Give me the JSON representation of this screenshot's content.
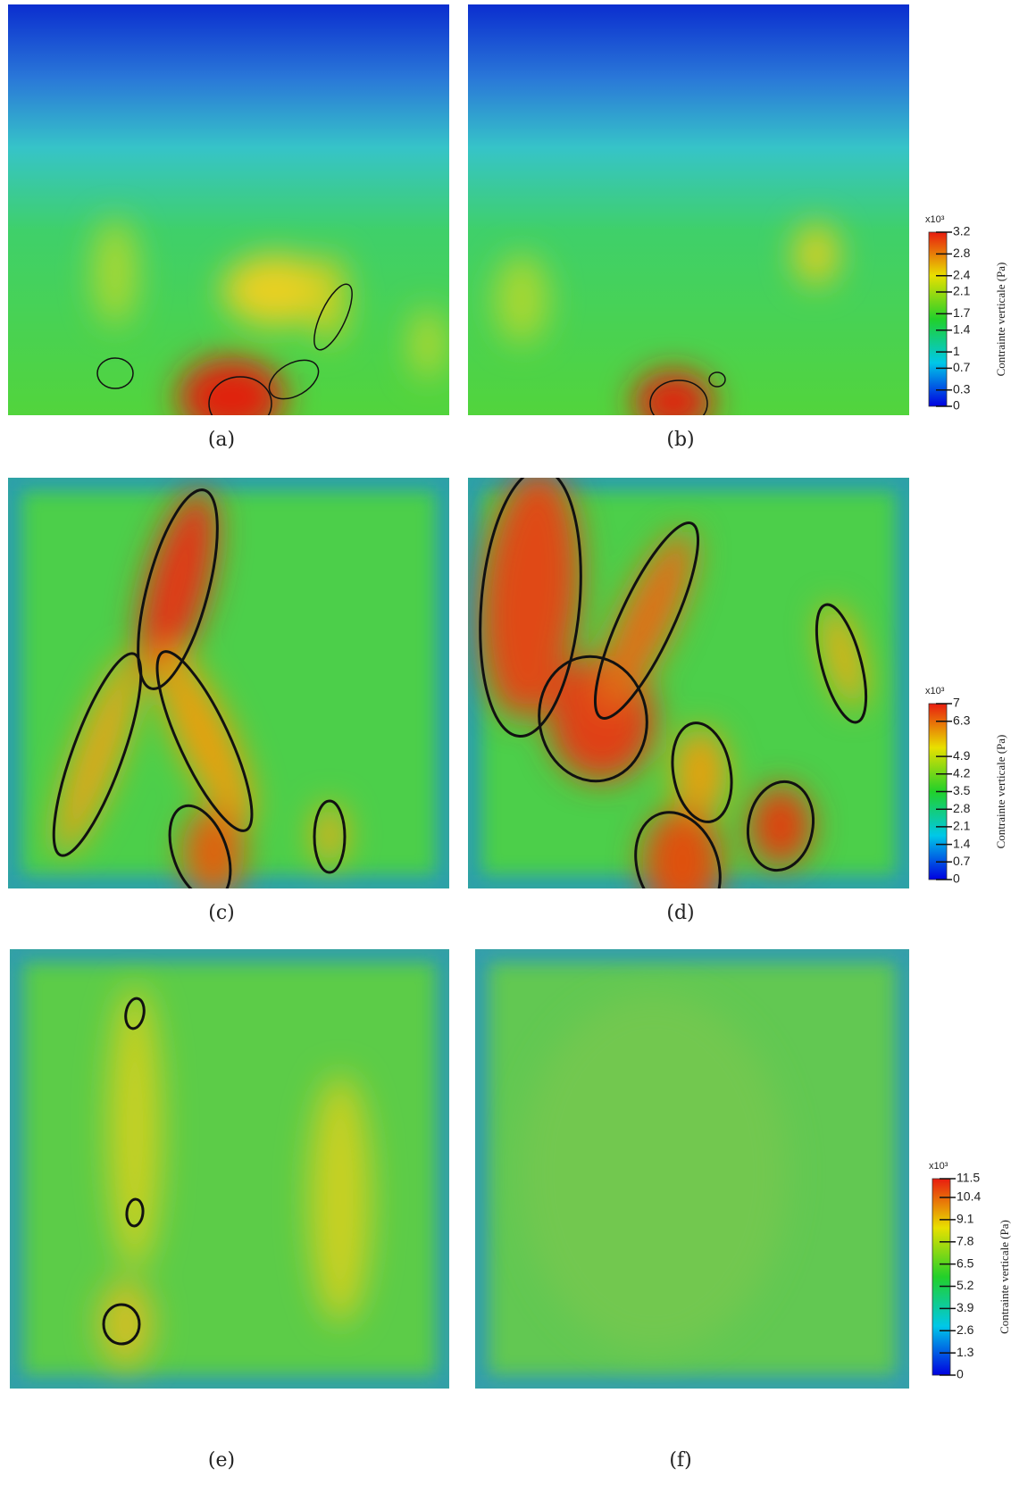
{
  "panels": [
    {
      "caption": "(a)"
    },
    {
      "caption": "(b)"
    },
    {
      "caption": "(c)"
    },
    {
      "caption": "(d)"
    },
    {
      "caption": "(e)"
    },
    {
      "caption": "(f)"
    }
  ],
  "colorbars": [
    {
      "exponent": "x10³",
      "label": "Contrainte verticale (Pa)",
      "lim": [
        0,
        3.2
      ],
      "ticks": [
        0,
        0.3,
        0.7,
        1,
        1.4,
        1.7,
        2.1,
        2.4,
        2.8,
        3.2
      ]
    },
    {
      "exponent": "x10³",
      "label": "Contrainte verticale (Pa)",
      "lim": [
        0,
        7
      ],
      "ticks": [
        0,
        0.7,
        1.4,
        2.1,
        2.8,
        3.5,
        4.2,
        4.9,
        6.3,
        7
      ]
    },
    {
      "exponent": "x10³",
      "label": "Contrainte verticale (Pa)",
      "lim": [
        0,
        11.5
      ],
      "ticks": [
        0,
        1.3,
        2.6,
        3.9,
        5.2,
        6.5,
        7.8,
        9.1,
        10.4,
        11.5
      ]
    }
  ]
}
